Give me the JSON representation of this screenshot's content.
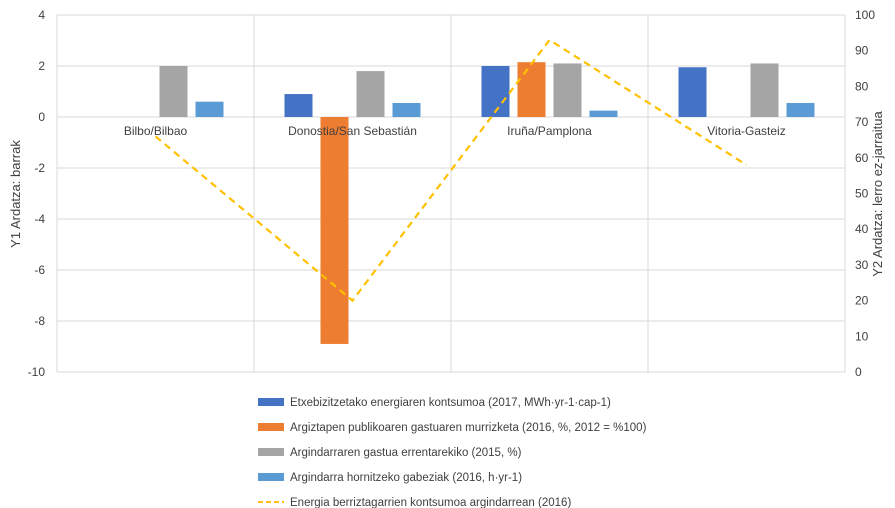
{
  "chart_data": {
    "type": "bar",
    "categories": [
      "Bilbo/Bilbao",
      "Donostia/San Sebastián",
      "Iruña/Pamplona",
      "Vitoria-Gasteiz"
    ],
    "series": [
      {
        "name": "Etxebizitzetako energiaren kontsumoa (2017, MWh·yr-1·cap-1)",
        "values": [
          null,
          0.9,
          2.0,
          1.95
        ],
        "color": "#4472c4",
        "axis": "y1",
        "kind": "bar"
      },
      {
        "name": "Argiztapen publikoaren gastuaren murrizketa (2016, %, 2012 = %100)",
        "values": [
          null,
          -8.9,
          2.15,
          null
        ],
        "color": "#ed7d31",
        "axis": "y1",
        "kind": "bar"
      },
      {
        "name": "Argindarraren gastua errentarekiko  (2015, %)",
        "values": [
          2.0,
          1.8,
          2.1,
          2.1
        ],
        "color": "#a5a5a5",
        "axis": "y1",
        "kind": "bar"
      },
      {
        "name": "Argindarra hornitzeko gabeziak (2016, h·yr-1)",
        "values": [
          0.6,
          0.55,
          0.25,
          0.55
        ],
        "color": "#5b9bd5",
        "axis": "y1",
        "kind": "bar"
      },
      {
        "name": "Energia berriztagarrien kontsumoa argindarrean (2016)",
        "values": [
          66,
          20,
          93,
          58
        ],
        "color": "#ffc000",
        "axis": "y2",
        "kind": "line",
        "dash": true
      }
    ],
    "ylabel": "Y1 Ardatza: barrak",
    "y2label": "Y2 Ardatza: lerro ez-jarraitua",
    "ylim": [
      -10,
      4
    ],
    "y2lim": [
      0,
      100
    ],
    "yticks": [
      "4",
      "2",
      "0",
      "-2",
      "-4",
      "-6",
      "-8",
      "-10"
    ],
    "y2ticks": [
      "100",
      "90",
      "80",
      "70",
      "60",
      "50",
      "40",
      "30",
      "20",
      "10",
      "0"
    ],
    "grid": true,
    "legend_position": "bottom"
  }
}
